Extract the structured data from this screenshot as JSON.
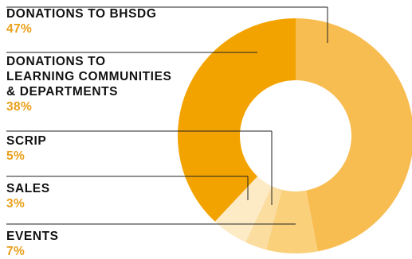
{
  "chart_data": {
    "type": "pie",
    "variant": "donut",
    "title": "",
    "slices": [
      {
        "label": "DONATIONS TO BHSDG",
        "value": 47,
        "display": "47%",
        "color": "#F8BD50"
      },
      {
        "label": "EVENTS",
        "value": 7,
        "display": "7%",
        "color": "#FAD07A"
      },
      {
        "label": "SALES",
        "value": 3,
        "display": "3%",
        "color": "#FBDDA0"
      },
      {
        "label": "SCRIP",
        "value": 5,
        "display": "5%",
        "color": "#FDEBC6"
      },
      {
        "label": "DONATIONS TO\nLEARNING COMMUNITIES\n& DEPARTMENTS",
        "value": 38,
        "display": "38%",
        "color": "#F3A300"
      }
    ],
    "legend_order": [
      0,
      4,
      3,
      2,
      1
    ],
    "label_color": "#111111",
    "percent_color": "#E9A01A",
    "leader_color": "#222222"
  }
}
